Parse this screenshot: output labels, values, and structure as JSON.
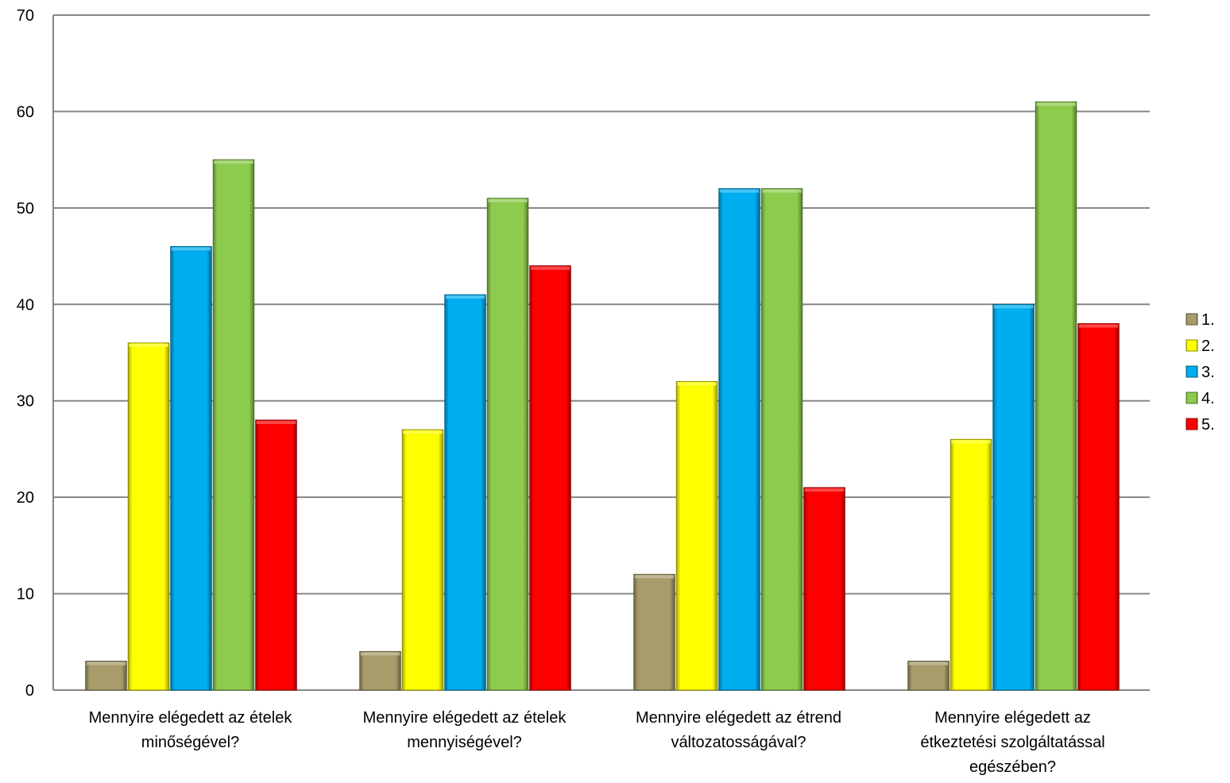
{
  "chart_data": {
    "type": "bar",
    "title": "",
    "xlabel": "",
    "ylabel": "",
    "ylim": [
      0,
      70
    ],
    "yticks": [
      0,
      10,
      20,
      30,
      40,
      50,
      60,
      70
    ],
    "grid": true,
    "legend_position": "right",
    "categories": [
      [
        "Mennyire elégedett az ételek",
        "minőségével?"
      ],
      [
        "Mennyire elégedett az ételek",
        "mennyiségével?"
      ],
      [
        "Mennyire elégedett az étrend",
        "változatosságával?"
      ],
      [
        "Mennyire elégedett az",
        "étkeztetési szolgáltatással",
        "egészében?"
      ]
    ],
    "series": [
      {
        "name": "1.",
        "color": "#A89C6A",
        "values": [
          3,
          4,
          12,
          3
        ]
      },
      {
        "name": "2.",
        "color": "#FFFF00",
        "values": [
          36,
          27,
          32,
          26
        ]
      },
      {
        "name": "3.",
        "color": "#00AEEF",
        "values": [
          46,
          41,
          52,
          40
        ]
      },
      {
        "name": "4.",
        "color": "#8DCB4E",
        "values": [
          55,
          51,
          52,
          61
        ]
      },
      {
        "name": "5.",
        "color": "#FF0000",
        "values": [
          28,
          44,
          21,
          38
        ]
      }
    ]
  }
}
